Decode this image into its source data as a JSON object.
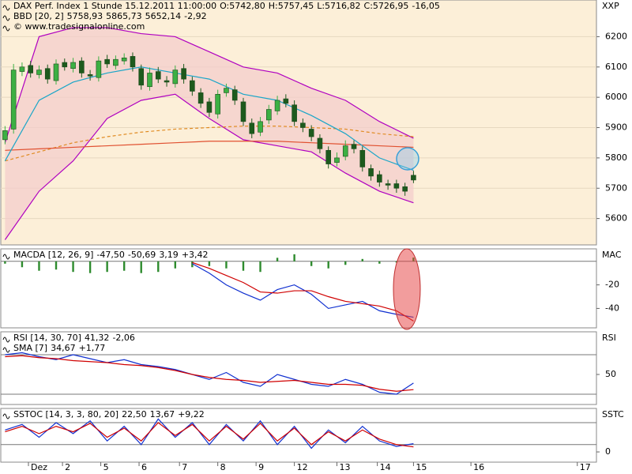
{
  "chart_data": [
    {
      "type": "candlestick",
      "axis_label": "XXP",
      "legend_rows": [
        [
          {
            "text": "DAX Perf. Index 1 Stunde  15.12.2011 11:00:00",
            "color": "#000000"
          },
          {
            "text": "O:5742,80",
            "color": "#d00000"
          },
          {
            "text": "H:5757,45",
            "color": "#000000"
          },
          {
            "text": "L:5716,82",
            "color": "#000000"
          },
          {
            "text": "C:5726,95",
            "color": "#000000"
          },
          {
            "text": "-16,05",
            "color": "#d00000"
          }
        ],
        [
          {
            "text": "BBD [20, 2]",
            "color": "#000000"
          },
          {
            "text": "5758,93",
            "color": "#1aa6c8"
          },
          {
            "text": "5865,73",
            "color": "#c000c0"
          },
          {
            "text": "5652,14",
            "color": "#8000a0"
          },
          {
            "text": "-2,92",
            "color": "#d00000"
          }
        ],
        [
          {
            "text": "© www.tradesignalonline.com",
            "color": "#000000"
          }
        ]
      ],
      "background": "#fcefd8",
      "grid": true,
      "band_fill": "#f3cccc",
      "up_color": "#3cb043",
      "down_color": "#1d5a1d",
      "xlim": [
        0,
        140
      ],
      "ylim": [
        5513,
        6321
      ],
      "yticks": [
        5600,
        5700,
        5800,
        5900,
        6000,
        6100,
        6200
      ],
      "x": [
        1,
        3,
        5,
        7,
        9,
        11,
        13,
        15,
        17,
        19,
        21,
        23,
        25,
        27,
        29,
        31,
        33,
        35,
        37,
        39,
        41,
        43,
        45,
        47,
        49,
        51,
        53,
        55,
        57,
        59,
        61,
        63,
        65,
        67,
        69,
        71,
        73,
        75,
        77,
        79,
        81,
        83,
        85,
        87,
        89,
        91,
        93,
        95,
        97
      ],
      "open": [
        5860,
        5895,
        6085,
        6105,
        6075,
        6095,
        6055,
        6115,
        6095,
        6120,
        6075,
        6065,
        6125,
        6105,
        6120,
        6135,
        6095,
        6035,
        6085,
        6055,
        6045,
        6095,
        6055,
        6015,
        5985,
        5945,
        6015,
        6025,
        5985,
        5915,
        5885,
        5925,
        5955,
        5995,
        5975,
        5915,
        5895,
        5865,
        5825,
        5785,
        5805,
        5845,
        5825,
        5765,
        5745,
        5715,
        5715,
        5705,
        5742.8
      ],
      "high": [
        5905,
        6110,
        6115,
        6120,
        6105,
        6108,
        6125,
        6128,
        6130,
        6132,
        6090,
        6135,
        6140,
        6138,
        6145,
        6148,
        6108,
        6098,
        6100,
        6070,
        6105,
        6110,
        6068,
        6030,
        5998,
        6025,
        6045,
        6038,
        5998,
        5930,
        5935,
        5975,
        6005,
        6010,
        5990,
        5930,
        5908,
        5878,
        5838,
        5818,
        5858,
        5858,
        5838,
        5778,
        5758,
        5728,
        5728,
        5718,
        5757.45
      ],
      "low": [
        5845,
        5880,
        6070,
        6065,
        6062,
        6045,
        6042,
        6088,
        6082,
        6065,
        6055,
        6052,
        6097,
        6092,
        6108,
        6085,
        6025,
        6022,
        6047,
        6035,
        6032,
        6045,
        6005,
        5965,
        5935,
        5930,
        6002,
        5975,
        5905,
        5865,
        5872,
        5912,
        5942,
        5967,
        5905,
        5885,
        5855,
        5815,
        5765,
        5772,
        5792,
        5815,
        5755,
        5725,
        5705,
        5695,
        5685,
        5675,
        5716.82
      ],
      "close": [
        5890,
        6090,
        6100,
        6080,
        6090,
        6060,
        6110,
        6100,
        6115,
        6080,
        6070,
        6120,
        6110,
        6125,
        6130,
        6100,
        6040,
        6080,
        6060,
        6050,
        6090,
        6060,
        6020,
        5980,
        5950,
        6010,
        6030,
        5990,
        5920,
        5880,
        5920,
        5960,
        5990,
        5980,
        5920,
        5900,
        5870,
        5830,
        5780,
        5800,
        5840,
        5830,
        5770,
        5740,
        5720,
        5710,
        5700,
        5690,
        5726.95
      ],
      "series": [
        {
          "type": "line",
          "color": "#b000c0",
          "x": [
            1,
            9,
            17,
            25,
            33,
            41,
            49,
            57,
            65,
            73,
            81,
            89,
            97
          ],
          "values": [
            5850,
            6200,
            6230,
            6230,
            6210,
            6200,
            6150,
            6100,
            6080,
            6030,
            5990,
            5920,
            5865
          ]
        },
        {
          "type": "line",
          "color": "#b000c0",
          "x": [
            1,
            9,
            17,
            25,
            33,
            41,
            49,
            57,
            65,
            73,
            81,
            89,
            97
          ],
          "values": [
            5530,
            5690,
            5790,
            5930,
            5990,
            6010,
            5930,
            5860,
            5840,
            5820,
            5750,
            5690,
            5652
          ]
        },
        {
          "type": "line",
          "color": "#e08a20",
          "dashed": true,
          "x": [
            1,
            9,
            17,
            25,
            33,
            41,
            49,
            57,
            65,
            73,
            81,
            89,
            97
          ],
          "values": [
            5790,
            5820,
            5850,
            5870,
            5885,
            5895,
            5900,
            5905,
            5905,
            5900,
            5895,
            5880,
            5870
          ]
        },
        {
          "type": "line",
          "color": "#e05030",
          "x": [
            1,
            9,
            17,
            25,
            33,
            41,
            49,
            57,
            65,
            73,
            81,
            89,
            97
          ],
          "values": [
            5825,
            5830,
            5835,
            5840,
            5845,
            5850,
            5855,
            5855,
            5855,
            5850,
            5845,
            5840,
            5835
          ]
        },
        {
          "type": "line",
          "color": "#1aa6c8",
          "x": [
            1,
            9,
            17,
            25,
            33,
            41,
            49,
            57,
            65,
            73,
            81,
            89,
            97
          ],
          "values": [
            5790,
            5990,
            6050,
            6080,
            6100,
            6080,
            6060,
            6010,
            5990,
            5940,
            5880,
            5800,
            5759
          ]
        }
      ]
    },
    {
      "type": "line",
      "axis_label": "MAC",
      "legend_rows": [
        [
          {
            "text": "MACDA [12, 26, 9]",
            "color": "#000000"
          },
          {
            "text": "-47,50",
            "color": "#1030d0"
          },
          {
            "text": "-50,69",
            "color": "#d00000"
          },
          {
            "text": "3,19",
            "color": "#20a020"
          },
          {
            "text": "+3,42",
            "color": "#20a020"
          }
        ]
      ],
      "background": "#ffffff",
      "grid": false,
      "xlim": [
        0,
        140
      ],
      "ylim": [
        -56.5,
        10.6
      ],
      "yticks": [
        -20,
        -40
      ],
      "levels": [
        0
      ],
      "x": [
        1,
        5,
        9,
        13,
        17,
        21,
        25,
        29,
        33,
        37,
        41,
        45,
        49,
        53,
        57,
        61,
        65,
        69,
        73,
        77,
        81,
        85,
        89,
        93,
        97
      ],
      "series": [
        {
          "type": "bar",
          "color": "#2e8b2e",
          "values": [
            -2,
            -5,
            -8,
            -7,
            -9,
            -10,
            -9,
            -8,
            -10,
            -9,
            -6,
            -5,
            -4,
            -6,
            -8,
            -9,
            3,
            6,
            -4,
            -6,
            -3,
            2,
            -2,
            -1,
            3.19
          ]
        },
        {
          "type": "line",
          "color": "#1030d0",
          "values": [
            null,
            null,
            null,
            null,
            null,
            null,
            null,
            null,
            null,
            null,
            null,
            -2,
            -10,
            -20,
            -27,
            -33,
            -24,
            -20,
            -28,
            -40,
            -37,
            -34,
            -42,
            -45,
            -47.5
          ]
        },
        {
          "type": "line",
          "color": "#d00000",
          "values": [
            null,
            null,
            null,
            null,
            null,
            null,
            null,
            null,
            null,
            null,
            null,
            -1,
            -6,
            -12,
            -18,
            -26,
            -27,
            -25,
            -25,
            -30,
            -34,
            -36,
            -38,
            -42,
            -50.69
          ]
        }
      ]
    },
    {
      "type": "line",
      "axis_label": "RSI",
      "legend_rows": [
        [
          {
            "text": "RSI [14, 30, 70]",
            "color": "#000000"
          },
          {
            "text": "41,32",
            "color": "#1030d0"
          },
          {
            "text": "-2,06",
            "color": "#d00000"
          }
        ],
        [
          {
            "text": "SMA [7]",
            "color": "#000000"
          },
          {
            "text": "34,67",
            "color": "#d00000"
          },
          {
            "text": "+1,77",
            "color": "#20a020"
          }
        ]
      ],
      "background": "#ffffff",
      "grid": false,
      "xlim": [
        0,
        140
      ],
      "ylim": [
        19.6,
        93.2
      ],
      "yticks": [
        50
      ],
      "levels": [
        70,
        30
      ],
      "x": [
        1,
        5,
        9,
        13,
        17,
        21,
        25,
        29,
        33,
        37,
        41,
        45,
        49,
        53,
        57,
        61,
        65,
        69,
        73,
        77,
        81,
        85,
        89,
        93,
        97
      ],
      "series": [
        {
          "type": "line",
          "color": "#1030d0",
          "values": [
            70,
            72,
            68,
            65,
            70,
            66,
            62,
            65,
            60,
            58,
            55,
            50,
            45,
            52,
            42,
            38,
            50,
            45,
            40,
            38,
            45,
            40,
            32,
            30,
            41.32
          ]
        },
        {
          "type": "line",
          "color": "#d00000",
          "values": [
            68,
            69,
            67,
            66,
            64,
            63,
            62,
            60,
            59,
            57,
            54,
            50,
            47,
            45,
            44,
            42,
            43,
            44,
            42,
            40,
            40,
            39,
            35,
            33,
            34.67
          ]
        }
      ]
    },
    {
      "type": "line",
      "axis_label": "SSTC",
      "legend_rows": [
        [
          {
            "text": "SSTOC [14, 3, 3, 80, 20]",
            "color": "#000000"
          },
          {
            "text": "22,50",
            "color": "#1030d0"
          },
          {
            "text": "13,67",
            "color": "#d00000"
          },
          {
            "text": "+9,22",
            "color": "#20a020"
          }
        ]
      ],
      "background": "#ffffff",
      "grid": false,
      "xlim": [
        0,
        140
      ],
      "ylim": [
        -28,
        118.9
      ],
      "yticks": [
        0
      ],
      "levels": [
        80,
        20
      ],
      "xticks": [
        {
          "value": 6.5,
          "label": "Dez"
        },
        {
          "value": 14.5,
          "label": "2"
        },
        {
          "value": 23.5,
          "label": "5"
        },
        {
          "value": 32.5,
          "label": "6"
        },
        {
          "value": 42,
          "label": "7"
        },
        {
          "value": 51,
          "label": "8"
        },
        {
          "value": 60,
          "label": "9"
        },
        {
          "value": 69,
          "label": "12"
        },
        {
          "value": 79,
          "label": "13"
        },
        {
          "value": 88.5,
          "label": "14"
        },
        {
          "value": 97,
          "label": "15"
        },
        {
          "value": 110.5,
          "label": "16"
        },
        {
          "value": 135.5,
          "label": "17"
        }
      ],
      "x": [
        1,
        5,
        9,
        13,
        17,
        21,
        25,
        29,
        33,
        37,
        41,
        45,
        49,
        53,
        57,
        61,
        65,
        69,
        73,
        77,
        81,
        85,
        89,
        93,
        97
      ],
      "series": [
        {
          "type": "line",
          "color": "#1030d0",
          "values": [
            60,
            75,
            40,
            80,
            50,
            85,
            30,
            70,
            20,
            90,
            40,
            80,
            20,
            75,
            30,
            85,
            20,
            70,
            10,
            60,
            25,
            70,
            30,
            15,
            22.5
          ]
        },
        {
          "type": "line",
          "color": "#d00000",
          "values": [
            55,
            70,
            50,
            70,
            55,
            78,
            40,
            65,
            30,
            80,
            45,
            75,
            30,
            70,
            35,
            78,
            30,
            65,
            20,
            55,
            30,
            60,
            35,
            20,
            13.67
          ]
        }
      ]
    }
  ]
}
